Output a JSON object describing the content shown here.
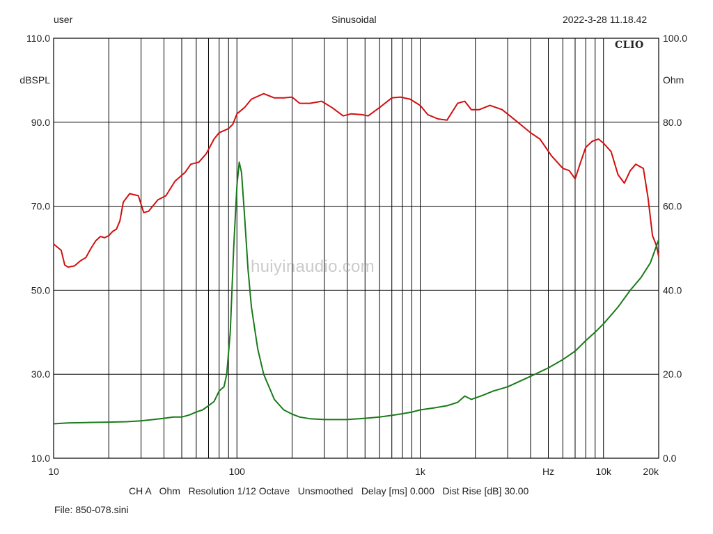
{
  "header": {
    "left": "user",
    "center": "Sinusoidal",
    "right": "2022-3-28 11.18.42"
  },
  "badge": "CLIO",
  "watermark": "huiyinaudio.com",
  "footer": {
    "settings": "CH A   Ohm   Resolution 1/12 Octave   Unsmoothed   Delay [ms] 0.000   Dist Rise [dB] 30.00",
    "file": "File: 850-078.sini"
  },
  "chart_data": {
    "type": "line",
    "x_scale": "log",
    "xlim": [
      10,
      20000
    ],
    "x_ticks": [
      {
        "value": 10,
        "label": "10"
      },
      {
        "value": 100,
        "label": "100"
      },
      {
        "value": 1000,
        "label": "1k"
      },
      {
        "value": 5000,
        "label": "Hz"
      },
      {
        "value": 10000,
        "label": "10k"
      },
      {
        "value": 20000,
        "label": "20k"
      }
    ],
    "left_axis": {
      "unit": "dBSPL",
      "ylim": [
        10,
        110
      ],
      "ticks": [
        "10.0",
        "30.0",
        "50.0",
        "70.0",
        "90.0",
        "110.0"
      ]
    },
    "right_axis": {
      "unit": "Ohm",
      "ylim": [
        0,
        100
      ],
      "ticks": [
        "0.0",
        "20.0",
        "40.0",
        "60.0",
        "80.0",
        "100.0"
      ]
    },
    "grid": true,
    "series": [
      {
        "axis": "left",
        "color": "#d01010",
        "points": [
          [
            10,
            61.0
          ],
          [
            11,
            59.5
          ],
          [
            11.5,
            56.0
          ],
          [
            12,
            55.5
          ],
          [
            13,
            55.8
          ],
          [
            14,
            57.0
          ],
          [
            15,
            57.8
          ],
          [
            16,
            60.0
          ],
          [
            17,
            61.8
          ],
          [
            18,
            62.8
          ],
          [
            19,
            62.5
          ],
          [
            20,
            63.0
          ],
          [
            21,
            64.0
          ],
          [
            22,
            64.5
          ],
          [
            23,
            66.5
          ],
          [
            24,
            71.0
          ],
          [
            26,
            73.0
          ],
          [
            29,
            72.5
          ],
          [
            31,
            68.5
          ],
          [
            33,
            68.8
          ],
          [
            37,
            71.5
          ],
          [
            41,
            72.5
          ],
          [
            46,
            76.0
          ],
          [
            52,
            78.0
          ],
          [
            56,
            80.0
          ],
          [
            62,
            80.5
          ],
          [
            68,
            82.5
          ],
          [
            75,
            86.0
          ],
          [
            80,
            87.5
          ],
          [
            90,
            88.5
          ],
          [
            95,
            89.5
          ],
          [
            100,
            92.0
          ],
          [
            110,
            93.5
          ],
          [
            120,
            95.5
          ],
          [
            140,
            96.8
          ],
          [
            160,
            95.8
          ],
          [
            180,
            95.8
          ],
          [
            200,
            96.0
          ],
          [
            220,
            94.5
          ],
          [
            250,
            94.5
          ],
          [
            290,
            95.0
          ],
          [
            330,
            93.5
          ],
          [
            380,
            91.5
          ],
          [
            420,
            92.0
          ],
          [
            480,
            91.8
          ],
          [
            520,
            91.5
          ],
          [
            600,
            93.5
          ],
          [
            700,
            95.8
          ],
          [
            780,
            96.0
          ],
          [
            880,
            95.5
          ],
          [
            1000,
            94.0
          ],
          [
            1100,
            91.8
          ],
          [
            1250,
            90.8
          ],
          [
            1400,
            90.5
          ],
          [
            1600,
            94.5
          ],
          [
            1750,
            95.0
          ],
          [
            1900,
            93.0
          ],
          [
            2100,
            93.0
          ],
          [
            2400,
            94.0
          ],
          [
            2800,
            93.0
          ],
          [
            3300,
            90.5
          ],
          [
            4000,
            87.5
          ],
          [
            4500,
            86.0
          ],
          [
            5200,
            82.0
          ],
          [
            6000,
            79.0
          ],
          [
            6500,
            78.5
          ],
          [
            7000,
            76.5
          ],
          [
            7500,
            80.5
          ],
          [
            8000,
            84.0
          ],
          [
            8700,
            85.5
          ],
          [
            9400,
            86.0
          ],
          [
            10000,
            85.0
          ],
          [
            11000,
            83.0
          ],
          [
            12000,
            77.5
          ],
          [
            13000,
            75.5
          ],
          [
            14000,
            78.5
          ],
          [
            15000,
            80.0
          ],
          [
            16500,
            79.0
          ],
          [
            17500,
            72.0
          ],
          [
            18500,
            63.0
          ],
          [
            19500,
            60.5
          ],
          [
            20000,
            58.0
          ]
        ]
      },
      {
        "axis": "right",
        "color": "#1a7a1a",
        "points": [
          [
            10,
            8.2
          ],
          [
            12,
            8.4
          ],
          [
            15,
            8.5
          ],
          [
            20,
            8.6
          ],
          [
            25,
            8.7
          ],
          [
            30,
            8.9
          ],
          [
            35,
            9.2
          ],
          [
            40,
            9.5
          ],
          [
            45,
            9.8
          ],
          [
            50,
            9.8
          ],
          [
            55,
            10.3
          ],
          [
            60,
            11.0
          ],
          [
            65,
            11.5
          ],
          [
            70,
            12.5
          ],
          [
            75,
            13.5
          ],
          [
            80,
            16.0
          ],
          [
            85,
            17.0
          ],
          [
            88,
            20.0
          ],
          [
            92,
            30.0
          ],
          [
            96,
            50.0
          ],
          [
            100,
            65.0
          ],
          [
            103,
            70.5
          ],
          [
            106,
            68.0
          ],
          [
            110,
            58.0
          ],
          [
            115,
            45.0
          ],
          [
            120,
            36.0
          ],
          [
            130,
            26.0
          ],
          [
            140,
            20.0
          ],
          [
            160,
            14.0
          ],
          [
            180,
            11.5
          ],
          [
            200,
            10.5
          ],
          [
            220,
            9.8
          ],
          [
            250,
            9.4
          ],
          [
            300,
            9.2
          ],
          [
            400,
            9.2
          ],
          [
            500,
            9.5
          ],
          [
            600,
            9.8
          ],
          [
            700,
            10.2
          ],
          [
            800,
            10.6
          ],
          [
            900,
            11.0
          ],
          [
            1000,
            11.5
          ],
          [
            1200,
            12.0
          ],
          [
            1400,
            12.5
          ],
          [
            1600,
            13.3
          ],
          [
            1750,
            14.8
          ],
          [
            1900,
            14.0
          ],
          [
            2200,
            15.0
          ],
          [
            2500,
            16.0
          ],
          [
            3000,
            17.0
          ],
          [
            4000,
            19.5
          ],
          [
            5000,
            21.5
          ],
          [
            6000,
            23.5
          ],
          [
            7000,
            25.5
          ],
          [
            8000,
            28.0
          ],
          [
            9000,
            30.0
          ],
          [
            10000,
            32.0
          ],
          [
            12000,
            36.0
          ],
          [
            14000,
            40.0
          ],
          [
            16000,
            43.0
          ],
          [
            18000,
            46.5
          ],
          [
            20000,
            52.0
          ]
        ]
      }
    ]
  }
}
